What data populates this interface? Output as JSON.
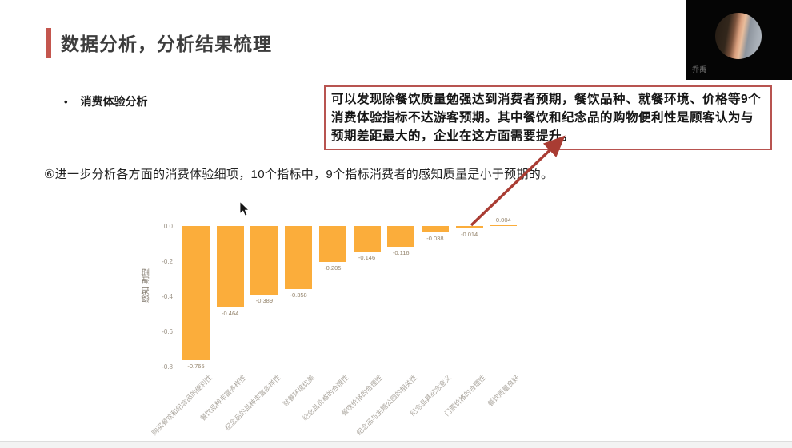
{
  "slide": {
    "title": "数据分析，分析结果梳理",
    "bullet": "消费体验分析",
    "callout": "可以发现除餐饮质量勉强达到消费者预期，餐饮品种、就餐环境、价格等9个消费体验指标不达游客预期。其中餐饮和纪念品的购物便利性是顾客认为与预期差距最大的，企业在这方面需要提升。",
    "body_text": "⑥进一步分析各方面的消费体验细项，10个指标中，9个指标消费者的感知质量是小于预期的。",
    "accent_color": "#c4564e",
    "callout_border_color": "#b85450",
    "arrow_color": "#a93c33"
  },
  "webcam": {
    "participant_name": "乔禹"
  },
  "chart_data": {
    "type": "bar",
    "title": "",
    "xlabel": "",
    "ylabel": "感知-期望",
    "categories": [
      "购买餐饮和纪念品的便利性",
      "餐饮品种丰富多样性",
      "纪念品的品种丰富多样性",
      "就餐环境优美",
      "纪念品价格的合理性",
      "餐饮价格的合理性",
      "纪念品与主题公园的相关性",
      "纪念品具纪念意义",
      "门票价格的合理性",
      "餐饮质量良好"
    ],
    "values": [
      -0.765,
      -0.464,
      -0.389,
      -0.358,
      -0.205,
      -0.146,
      -0.116,
      -0.038,
      -0.014,
      0.004
    ],
    "value_labels": [
      "-0.765",
      "-0.464",
      "-0.389",
      "-0.358",
      "-0.205",
      "-0.146",
      "-0.116",
      "-0.038",
      "-0.014",
      "0.004"
    ],
    "y_ticks": [
      {
        "label": "0.0",
        "value": 0.0
      },
      {
        "label": "-0.2",
        "value": -0.2
      },
      {
        "label": "-0.4",
        "value": -0.4
      },
      {
        "label": "-0.6",
        "value": -0.6
      },
      {
        "label": "-0.8",
        "value": -0.8
      }
    ],
    "ylim": [
      -0.8,
      0.05
    ],
    "bar_color": "#fbad3b",
    "grid": false,
    "legend": "none",
    "x_tick_rotation": 45
  }
}
